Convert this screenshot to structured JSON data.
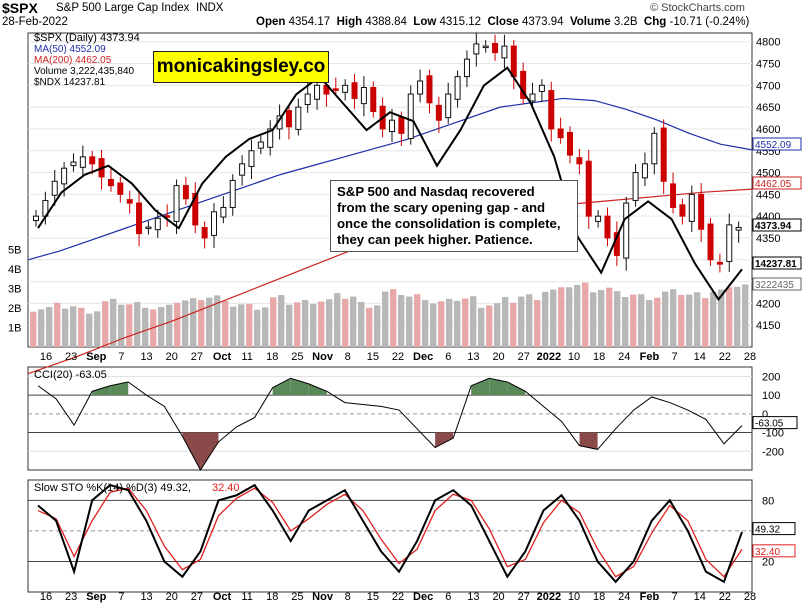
{
  "header": {
    "symbol": "$SPX",
    "name": "S&P 500 Large Cap Index",
    "exchange": "INDX",
    "date": "28-Feb-2022",
    "open_label": "Open",
    "open": "4354.17",
    "high_label": "High",
    "high": "4388.84",
    "low_label": "Low",
    "low": "4315.12",
    "close_label": "Close",
    "close": "4373.94",
    "volume_label": "Volume",
    "volume": "3.2B",
    "chg_label": "Chg",
    "chg": "-10.71 (-0.24%)",
    "source": "© StockCharts.com"
  },
  "watermark": "monicakingsley.co",
  "annotation": {
    "line1": "S&P 500 and Nasdaq recovered",
    "line2": "from the scary opening gap - and",
    "line3": "once the consolidation is complete,",
    "line4": "they can peek higher. Patience."
  },
  "legend": {
    "main": "$SPX (Daily) 4373.94",
    "ma50": "MA(50) 4552.09",
    "ma200": "MA(200) 4462.05",
    "volume": "Volume 3,222,435,840",
    "ndx": "$NDX 14237.81"
  },
  "price_badges": {
    "ma50": "4552.09",
    "ma200": "4462.05",
    "close": "4373.94",
    "ndx": "14237.81",
    "volume": "3222435"
  },
  "cci_legend": "CCI(20) -63.05",
  "cci_badge": "-63.05",
  "sto_legend_k": "Slow STO %K(14) %D(3) 49.32,",
  "sto_legend_d": "32.40",
  "sto_badges": {
    "k": "49.32",
    "d": "32.40"
  },
  "colors": {
    "up": "#111111",
    "down": "#cc0000",
    "ma50": "#1c2fa8",
    "ma200": "#cc2222",
    "ndx": "#000000",
    "vol_up": "#b8b8b8",
    "vol_down": "#e8a8a8",
    "cci_pos": "#5a8a5a",
    "cci_neg": "#8a4a4a",
    "sto_d": "#e02020"
  },
  "x_labels": [
    "16",
    "23",
    "Sep",
    "7",
    "13",
    "20",
    "27",
    "Oct",
    "11",
    "18",
    "25",
    "Nov",
    "8",
    "15",
    "22",
    "Dec",
    "6",
    "13",
    "20",
    "27",
    "2022",
    "10",
    "18",
    "24",
    "Feb",
    "7",
    "14",
    "22",
    "28"
  ],
  "chart_data": [
    {
      "type": "candlestick",
      "title": "$SPX (Daily) 4373.94",
      "ylim": [
        4100,
        4820
      ],
      "y_ticks": [
        4150,
        4200,
        4250,
        4300,
        4350,
        4400,
        4450,
        4500,
        4550,
        4600,
        4650,
        4700,
        4750,
        4800
      ],
      "volume_ticks": [
        "1B",
        "2B",
        "3B",
        "4B",
        "5B"
      ],
      "series": [
        {
          "name": "SPX close",
          "values": [
            4400,
            4436,
            4480,
            4510,
            4524,
            4536,
            4520,
            4490,
            4470,
            4450,
            4430,
            4360,
            4375,
            4395,
            4400,
            4470,
            4440,
            4380,
            4350,
            4410,
            4420,
            4482,
            4520,
            4550,
            4570,
            4600,
            4630,
            4605,
            4650,
            4680,
            4700,
            4680,
            4690,
            4700,
            4670,
            4695,
            4640,
            4600,
            4620,
            4590,
            4680,
            4710,
            4660,
            4620,
            4680,
            4720,
            4760,
            4795,
            4790,
            4775,
            4790,
            4720,
            4670,
            4680,
            4700,
            4600,
            4580,
            4540,
            4520,
            4400,
            4400,
            4350,
            4310,
            4430,
            4500,
            4520,
            4590,
            4480,
            4420,
            4400,
            4450,
            4370,
            4300,
            4290,
            4380,
            4374
          ]
        },
        {
          "name": "MA(50)",
          "values": [
            4300,
            4320,
            4345,
            4370,
            4395,
            4420,
            4445,
            4470,
            4495,
            4515,
            4535,
            4555,
            4575,
            4600,
            4625,
            4650,
            4660,
            4670,
            4665,
            4645,
            4620,
            4590,
            4565,
            4552
          ]
        },
        {
          "name": "MA(200)",
          "values": [
            4135,
            4160,
            4190,
            4215,
            4245,
            4275,
            4305,
            4335,
            4365,
            4390,
            4410,
            4425,
            4435,
            4445,
            4455,
            4462
          ]
        },
        {
          "name": "$NDX",
          "values": [
            14700,
            15100,
            15300,
            15400,
            15200,
            14900,
            14700,
            15200,
            15500,
            15700,
            15800,
            16200,
            16400,
            16100,
            15800,
            16000,
            15900,
            15400,
            15800,
            16300,
            16500,
            16100,
            15500,
            14600,
            14200,
            14800,
            15000,
            14800,
            14300,
            13900,
            14238
          ]
        },
        {
          "name": "Volume",
          "values": [
            2.0,
            2.1,
            1.9,
            2.3,
            2.2,
            2.0,
            2.4,
            2.6,
            2.2,
            2.1,
            2.5,
            2.3,
            2.4,
            2.6,
            2.2,
            2.8,
            2.6,
            2.3,
            2.5,
            2.2,
            2.4,
            2.6,
            2.9,
            3.2,
            3.0,
            2.7,
            2.6,
            2.8,
            2.7,
            2.9,
            3.22
          ]
        }
      ]
    },
    {
      "type": "line",
      "title": "CCI(20) -63.05",
      "ylim": [
        -300,
        250
      ],
      "y_ticks": [
        200,
        100,
        0,
        -100,
        -200
      ],
      "series": [
        {
          "name": "CCI(20)",
          "values": [
            150,
            80,
            -60,
            120,
            150,
            170,
            100,
            40,
            -120,
            -300,
            -150,
            -70,
            -20,
            140,
            190,
            160,
            120,
            60,
            50,
            40,
            20,
            -80,
            -180,
            -130,
            150,
            190,
            170,
            120,
            40,
            -40,
            -170,
            -190,
            -80,
            20,
            90,
            60,
            20,
            -30,
            -160,
            -63
          ]
        }
      ]
    },
    {
      "type": "line",
      "title": "Slow STO %K(14) %D(3)",
      "ylim": [
        -10,
        100
      ],
      "y_ticks": [
        80,
        50,
        20
      ],
      "series": [
        {
          "name": "%K(14)",
          "values": [
            75,
            60,
            10,
            80,
            95,
            90,
            60,
            20,
            5,
            30,
            80,
            85,
            95,
            70,
            40,
            70,
            80,
            90,
            60,
            30,
            10,
            40,
            80,
            90,
            75,
            40,
            5,
            30,
            70,
            85,
            60,
            20,
            0,
            20,
            60,
            80,
            50,
            10,
            0,
            49
          ]
        },
        {
          "name": "%D(3)",
          "values": [
            70,
            62,
            25,
            60,
            88,
            92,
            70,
            35,
            12,
            22,
            65,
            82,
            92,
            78,
            50,
            62,
            76,
            86,
            70,
            42,
            18,
            32,
            70,
            86,
            80,
            52,
            15,
            22,
            58,
            80,
            68,
            32,
            5,
            15,
            48,
            75,
            60,
            22,
            5,
            32
          ]
        }
      ]
    }
  ]
}
